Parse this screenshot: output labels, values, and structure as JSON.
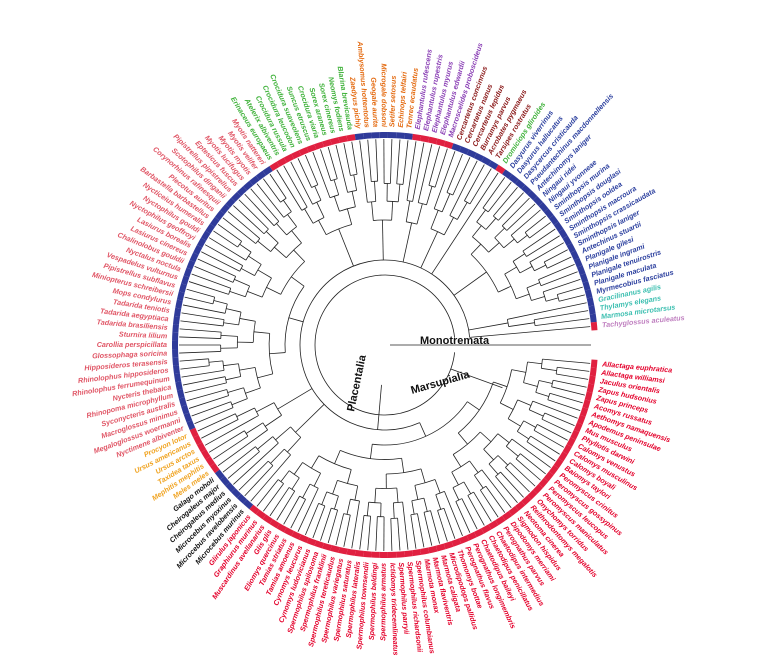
{
  "tree": {
    "colors": {
      "rodent": "#e4002b",
      "primate": "#111111",
      "carnivore": "#f0a320",
      "bat": "#e05565",
      "shrew": "#3fb23a",
      "afrotheria": "#e46a10",
      "elephant_shrew": "#8a3fb5",
      "macroscelid_dark": "#8b1a1a",
      "marsupial": "#2b3f9e",
      "marsupial_teal": "#3cbfb0",
      "monotreme": "#c080c0",
      "ring_red": "#e02040",
      "ring_blue": "#2f3b9a"
    },
    "clade_labels": [
      {
        "id": "monotremata",
        "text": "Monotremata"
      },
      {
        "id": "marsupialia",
        "text": "Marsupialia"
      },
      {
        "id": "placentalia",
        "text": "Placentalia"
      }
    ],
    "groups": [
      {
        "color": "rodent",
        "ring": "ring_red",
        "taxa": [
          "Tachyglossus aculeatus"
        ]
      },
      {
        "color": "rodent",
        "ring": "ring_red",
        "taxa": [
          "Allactaga euphratica",
          "Allactaga williamsi",
          "Jaculus orientalis",
          "Zapus hudsonius",
          "Zapus princeps",
          "Acomys russatus",
          "Aethomys namaquensis",
          "Apodemus peninsulae",
          "Mus musculus",
          "Phyllotis darwini",
          "Calomys venustus",
          "Calomys musculinus",
          "Calomys boyali",
          "Baiomys taylori",
          "Peromyscus crinitus",
          "Peromyscus gossypinus",
          "Peromyscus leucopus",
          "Peromyscus maniculatus",
          "Onychomys torridus",
          "Reithrodontomys megalotis",
          "Neotoma cinerea",
          "Sigmodon hispidus",
          "Dipodomys merriami",
          "Perognathus parvus",
          "Chaetodipus intermedius",
          "Chaetodipus penicillatus",
          "Chaetodipus baileyi",
          "Perognathus longimembris",
          "Perognathus flavus",
          "Thomomys bottae",
          "Microdipodops pallidus",
          "Marmota caligata",
          "Marmota flaviventris",
          "Marmota monax",
          "Spermophilus columbianus",
          "Spermophilus richardsonii",
          "Spermophilus parryii",
          "Ictidomys tridecemlineatus",
          "Spermophilus armatus",
          "Spermophilus beldingi",
          "Spermophilus townsendii",
          "Spermophilus lateralis",
          "Spermophilus saturatus",
          "Spermophilus variegatus",
          "Spermophilus tereticaudus",
          "Spermophilus franklinii",
          "Spermophilus spilosoma",
          "Cynomys ludovicianus",
          "Cynomys leucurus",
          "Tamias amoenus",
          "Tamias striatus",
          "Eliomys quercinus",
          "Glis glis",
          "Muscardinus avellanarius",
          "Graphiurus murinus",
          "Glirulus japonicus"
        ]
      },
      {
        "color": "primate",
        "ring": "ring_blue",
        "taxa": [
          "Microcebus murinus",
          "Microcebus ravelobensis",
          "Microcebus myoxinus",
          "Cheirogaleus medius",
          "Cheirogaleus major",
          "Galago moholi"
        ]
      },
      {
        "color": "carnivore",
        "ring": "ring_red",
        "taxa": [
          "Meles meles",
          "Mephitis mephitis",
          "Taxidea taxus",
          "Ursus arctos",
          "Ursus americanus",
          "Procyon lotor"
        ]
      },
      {
        "color": "bat",
        "ring": "ring_blue",
        "taxa": [
          "Nyctimene albiventer",
          "Megaloglossus woermanni",
          "Macroglossus minimus",
          "Syconycteris australis",
          "Rhinopoma microphyllum",
          "Nycteris thebaica",
          "Rhinolophus ferrumequinum",
          "Rhinolophus hipposideros",
          "Hipposideros terasensis",
          "Glossophaga soricina",
          "Carollia perspicillata",
          "Sturnira lilium",
          "Tadarida brasiliensis",
          "Tadarida aegyptiaca",
          "Tadarida teniotis",
          "Mops condylurus",
          "Miniopterus schreibersii",
          "Pipistrellus subflavus",
          "Vespadelus vulturnus",
          "Nyctalus noctula",
          "Chalinolobus gouldii",
          "Lasiurus cinereus",
          "Lasiurus borealis",
          "Nyctophilus geoffroyi",
          "Nyctophilus gouldi",
          "Nycticeius humeralis",
          "Barbastella barbastellus",
          "Plecotus auritus",
          "Corynorhinus rafinesquii",
          "Scotophilus dinganii",
          "Pipistrellus pipistrellus",
          "Eptesicus fuscus",
          "Myotis lucifugus",
          "Myotis myotis",
          "Myotis velifer",
          "Myotis nattereri"
        ]
      },
      {
        "color": "shrew",
        "ring": "ring_red",
        "taxa": [
          "Erinaceus europaeus",
          "Atelerix albiventris",
          "Crocidura russula",
          "Crocidura leucodon",
          "Crocidura suaveolens",
          "Suncus etruscus",
          "Crocidura viaria",
          "Sorex araneus",
          "Sorex cinereus",
          "Neomys fodiens",
          "Blarina brevicauda"
        ]
      },
      {
        "color": "afrotheria",
        "ring": "ring_blue",
        "taxa": [
          "Zaedyus pichiy",
          "Amblysomus hottentotus",
          "Geogale aurita",
          "Microgale dobsoni",
          "Setifer setosus",
          "Echinops telfairi",
          "Tenrec ecaudatus"
        ]
      },
      {
        "color": "elephant_shrew",
        "ring": "ring_red",
        "taxa": [
          "Elephantulus rufescens",
          "Elephantulus rupestris",
          "Elephantulus myurus",
          "Elephantulus edwardii",
          "Macroscelides proboscideus"
        ]
      },
      {
        "color": "macroscelid_dark",
        "ring": "ring_blue",
        "taxa": [
          "Cercartetus concinnus",
          "Cercartetus nanus",
          "Cercartetus lepidus",
          "Burramys parvus",
          "Acrobates pygmaeus",
          "Tarsipes rostratus"
        ]
      },
      {
        "color": "shrew",
        "ring": "ring_red",
        "taxa": [
          "Dromiciops gliroides"
        ]
      },
      {
        "color": "marsupial",
        "ring": "ring_blue",
        "taxa": [
          "Dasyurus viverrinus",
          "Dasyurus hallucatus",
          "Dasycercus cristicauda",
          "Pseudantechinus macdonnellensis",
          "Antechinomys laniger",
          "Ningaui ridei",
          "Ningaui yvonneae",
          "Sminthopsis murina",
          "Sminthopsis douglasi",
          "Sminthopsis ooldea",
          "Sminthopsis macroura",
          "Sminthopsis crassicaudata",
          "Sminthopsis laniger",
          "Antechinus stuartii",
          "Planigale gilesi",
          "Planigale ingrami",
          "Planigale tenuirostris",
          "Planigale maculata",
          "Myrmecobius fasciatus"
        ]
      },
      {
        "color": "marsupial_teal",
        "ring": "ring_blue",
        "taxa": [
          "Gracilinanus agilis",
          "Thylamys elegans",
          "Marmosa microtarsus"
        ]
      },
      {
        "color": "monotreme",
        "ring": "ring_red",
        "taxa": [
          "Tachyglossus aculeatus"
        ]
      }
    ]
  }
}
